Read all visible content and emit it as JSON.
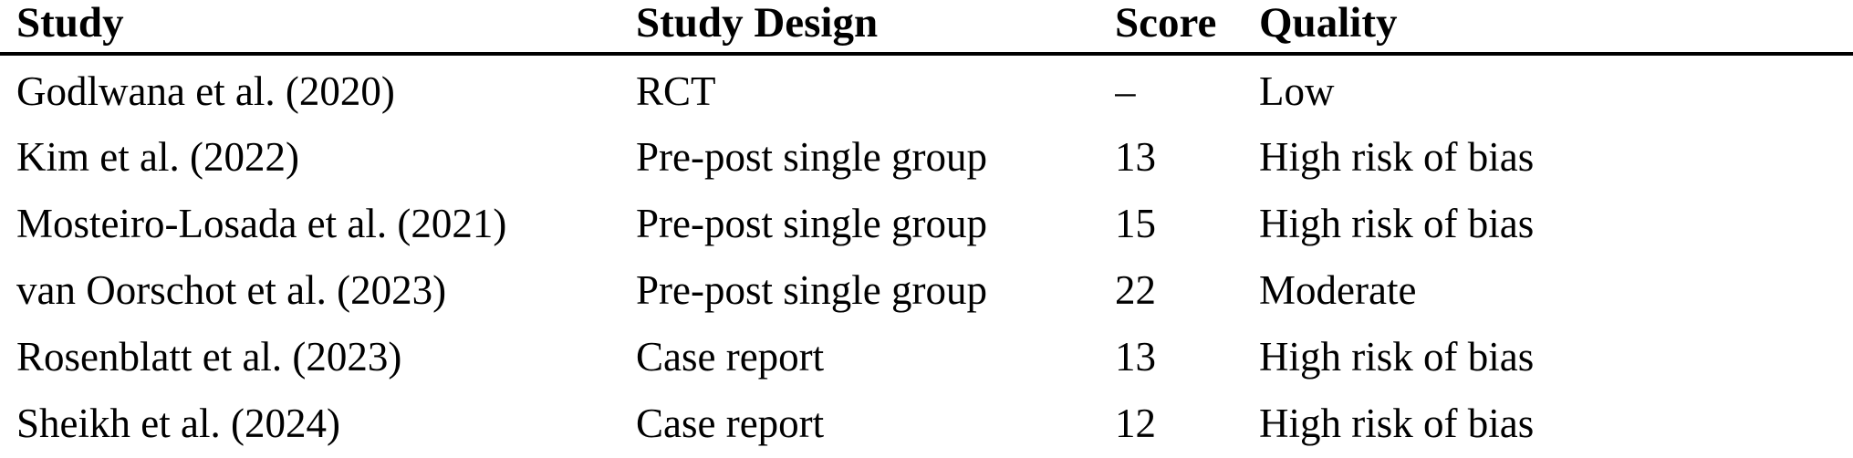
{
  "colors": {
    "background": "#ffffff",
    "text": "#000000",
    "header_rule": "#000000"
  },
  "table": {
    "columns": [
      {
        "label": "Study"
      },
      {
        "label": "Study Design"
      },
      {
        "label": "Score"
      },
      {
        "label": "Quality"
      }
    ],
    "rows": [
      {
        "study": "Godlwana et al. (2020)",
        "design": "RCT",
        "score": "–",
        "quality": "Low"
      },
      {
        "study": "Kim et al. (2022)",
        "design": "Pre-post single group",
        "score": "13",
        "quality": "High risk of bias"
      },
      {
        "study": "Mosteiro-Losada et al. (2021)",
        "design": "Pre-post single group",
        "score": "15",
        "quality": "High risk of bias"
      },
      {
        "study": "van Oorschot et al. (2023)",
        "design": "Pre-post single group",
        "score": "22",
        "quality": "Moderate"
      },
      {
        "study": "Rosenblatt et al. (2023)",
        "design": "Case report",
        "score": "13",
        "quality": "High risk of bias"
      },
      {
        "study": "Sheikh et al. (2024)",
        "design": "Case report",
        "score": "12",
        "quality": "High risk of bias"
      }
    ]
  }
}
